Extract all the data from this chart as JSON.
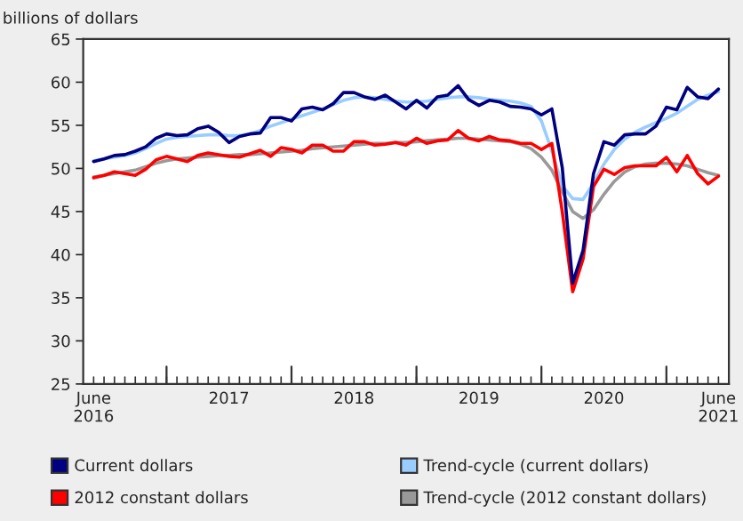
{
  "chart_data": {
    "type": "line",
    "ylabel": "billions of dollars",
    "x": [
      "2016-06",
      "2016-07",
      "2016-08",
      "2016-09",
      "2016-10",
      "2016-11",
      "2016-12",
      "2017-01",
      "2017-02",
      "2017-03",
      "2017-04",
      "2017-05",
      "2017-06",
      "2017-07",
      "2017-08",
      "2017-09",
      "2017-10",
      "2017-11",
      "2017-12",
      "2018-01",
      "2018-02",
      "2018-03",
      "2018-04",
      "2018-05",
      "2018-06",
      "2018-07",
      "2018-08",
      "2018-09",
      "2018-10",
      "2018-11",
      "2018-12",
      "2019-01",
      "2019-02",
      "2019-03",
      "2019-04",
      "2019-05",
      "2019-06",
      "2019-07",
      "2019-08",
      "2019-09",
      "2019-10",
      "2019-11",
      "2019-12",
      "2020-01",
      "2020-02",
      "2020-03",
      "2020-04",
      "2020-05",
      "2020-06",
      "2020-07",
      "2020-08",
      "2020-09",
      "2020-10",
      "2020-11",
      "2020-12",
      "2021-01",
      "2021-02",
      "2021-03",
      "2021-04",
      "2021-05",
      "2021-06"
    ],
    "series": [
      {
        "name": "Current dollars",
        "color": "#000080",
        "values": [
          50.8,
          51.1,
          51.5,
          51.6,
          52.0,
          52.5,
          53.5,
          54.0,
          53.8,
          53.9,
          54.6,
          54.9,
          54.2,
          53.0,
          53.7,
          54.0,
          54.1,
          55.9,
          55.9,
          55.5,
          56.9,
          57.1,
          56.8,
          57.5,
          58.8,
          58.8,
          58.3,
          58.0,
          58.5,
          57.7,
          56.9,
          57.9,
          57.0,
          58.3,
          58.5,
          59.6,
          58.0,
          57.3,
          57.9,
          57.7,
          57.2,
          57.1,
          56.9,
          56.2,
          56.9,
          50.1,
          36.7,
          40.5,
          49.4,
          53.1,
          52.7,
          53.9,
          54.0,
          54.0,
          54.9,
          57.1,
          56.8,
          59.4,
          58.3,
          58.1,
          59.2
        ]
      },
      {
        "name": "2012 constant dollars",
        "color": "#ff0000",
        "values": [
          48.9,
          49.2,
          49.6,
          49.4,
          49.2,
          49.9,
          51.0,
          51.4,
          51.1,
          50.8,
          51.5,
          51.8,
          51.6,
          51.4,
          51.3,
          51.7,
          52.1,
          51.4,
          52.4,
          52.2,
          51.8,
          52.7,
          52.7,
          52.0,
          52.0,
          53.1,
          53.1,
          52.7,
          52.8,
          53.0,
          52.7,
          53.5,
          52.9,
          53.2,
          53.3,
          54.4,
          53.5,
          53.2,
          53.7,
          53.3,
          53.2,
          52.9,
          52.9,
          52.2,
          52.9,
          45.0,
          35.7,
          39.5,
          47.9,
          49.9,
          49.3,
          50.1,
          50.3,
          50.3,
          50.3,
          51.3,
          49.6,
          51.5,
          49.4,
          48.2,
          49.1
        ]
      },
      {
        "name": "Trend-cycle (current dollars)",
        "color": "#99ccff",
        "values": [
          50.9,
          51.1,
          51.3,
          51.5,
          51.8,
          52.3,
          52.9,
          53.4,
          53.6,
          53.7,
          53.8,
          53.9,
          53.9,
          53.8,
          53.8,
          54.0,
          54.4,
          54.9,
          55.3,
          55.7,
          56.1,
          56.5,
          56.9,
          57.4,
          57.9,
          58.2,
          58.3,
          58.2,
          58.0,
          57.8,
          57.7,
          57.7,
          57.8,
          58.0,
          58.2,
          58.3,
          58.3,
          58.2,
          58.0,
          57.9,
          57.8,
          57.6,
          57.2,
          55.5,
          52.0,
          48.0,
          46.5,
          46.4,
          48.3,
          50.5,
          52.2,
          53.4,
          54.2,
          54.8,
          55.3,
          55.8,
          56.4,
          57.2,
          58.0,
          58.5,
          58.9
        ]
      },
      {
        "name": "Trend-cycle (2012 constant dollars)",
        "color": "#999999",
        "values": [
          49.0,
          49.2,
          49.4,
          49.6,
          49.8,
          50.2,
          50.6,
          50.9,
          51.1,
          51.2,
          51.3,
          51.4,
          51.5,
          51.5,
          51.6,
          51.6,
          51.7,
          51.8,
          51.9,
          52.0,
          52.1,
          52.3,
          52.4,
          52.5,
          52.6,
          52.7,
          52.8,
          52.9,
          52.9,
          53.0,
          53.0,
          53.1,
          53.2,
          53.3,
          53.4,
          53.5,
          53.5,
          53.4,
          53.3,
          53.2,
          53.1,
          52.8,
          52.3,
          51.3,
          49.8,
          47.3,
          45.0,
          44.2,
          45.2,
          47.0,
          48.5,
          49.6,
          50.2,
          50.5,
          50.6,
          50.6,
          50.5,
          50.3,
          49.9,
          49.5,
          49.2
        ]
      }
    ],
    "xlim": [
      "2016-05",
      "2021-07"
    ],
    "xticks": [
      {
        "value": "2016-06",
        "label": "June\n2016"
      },
      {
        "value": "2017-07",
        "label": "2017"
      },
      {
        "value": "2018-07",
        "label": "2018"
      },
      {
        "value": "2019-07",
        "label": "2019"
      },
      {
        "value": "2020-07",
        "label": "2020"
      },
      {
        "value": "2021-06",
        "label": "June\n2021"
      },
      {
        "value": "2017-01",
        "label": null
      },
      {
        "value": "2018-01",
        "label": null
      },
      {
        "value": "2019-01",
        "label": null
      },
      {
        "value": "2020-01",
        "label": null
      },
      {
        "value": "2021-01",
        "label": null
      }
    ],
    "ylim": [
      25,
      65
    ],
    "yticks": [
      25,
      30,
      35,
      40,
      45,
      50,
      55,
      60,
      65
    ],
    "legend": "bottom",
    "grid": false,
    "line_style": "solid",
    "marker": "none"
  }
}
